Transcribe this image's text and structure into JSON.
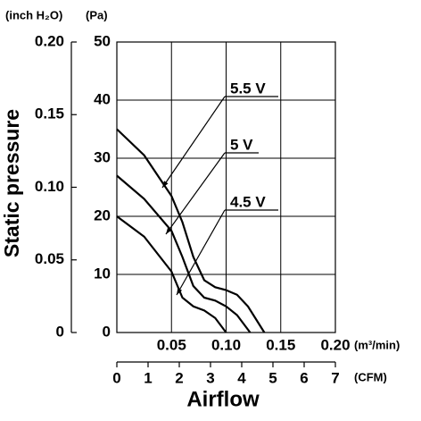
{
  "chart_data": {
    "type": "line",
    "x_label": "Airflow",
    "y_label": "Static pressure",
    "x_unit": "(m³/min)",
    "y_unit": "(Pa)",
    "y2_unit": "(inch H₂O)",
    "x2_unit": "(CFM)",
    "xlim": [
      0,
      0.2
    ],
    "xticks": [
      0.05,
      {
        "value": 0.1,
        "label": "0.10"
      },
      0.15,
      {
        "value": 0.2,
        "label": "0.20"
      }
    ],
    "ylim": [
      0,
      50
    ],
    "yticks": [
      0,
      10,
      20,
      30,
      40,
      50
    ],
    "y2lim": [
      0,
      0.2
    ],
    "y2ticks": [
      0,
      0.05,
      {
        "value": 0.1,
        "label": "0.10"
      },
      0.15,
      {
        "value": 0.2,
        "label": "0.20"
      }
    ],
    "x2lim": [
      0,
      7
    ],
    "x2ticks": [
      0,
      1,
      2,
      3,
      4,
      5,
      6,
      7
    ],
    "grid": true,
    "color": "#000000",
    "series": [
      {
        "name": "5.5 V",
        "x": [
          0,
          0.025,
          0.05,
          0.06,
          0.07,
          0.08,
          0.09,
          0.1,
          0.11,
          0.12,
          0.13,
          0.135
        ],
        "values": [
          35,
          30.5,
          23.5,
          19,
          13,
          9,
          7.8,
          7.3,
          6.5,
          4.5,
          1.5,
          0
        ]
      },
      {
        "name": "5 V",
        "x": [
          0,
          0.025,
          0.05,
          0.06,
          0.07,
          0.08,
          0.09,
          0.1,
          0.11,
          0.12,
          0.122
        ],
        "values": [
          27,
          23,
          17.5,
          13,
          8,
          6,
          5.5,
          4.5,
          3,
          0.5,
          0
        ]
      },
      {
        "name": "4.5 V",
        "x": [
          0,
          0.025,
          0.05,
          0.06,
          0.07,
          0.08,
          0.09,
          0.1
        ],
        "values": [
          20,
          16.5,
          10.5,
          6,
          4.5,
          3.8,
          2.5,
          0
        ]
      }
    ]
  }
}
